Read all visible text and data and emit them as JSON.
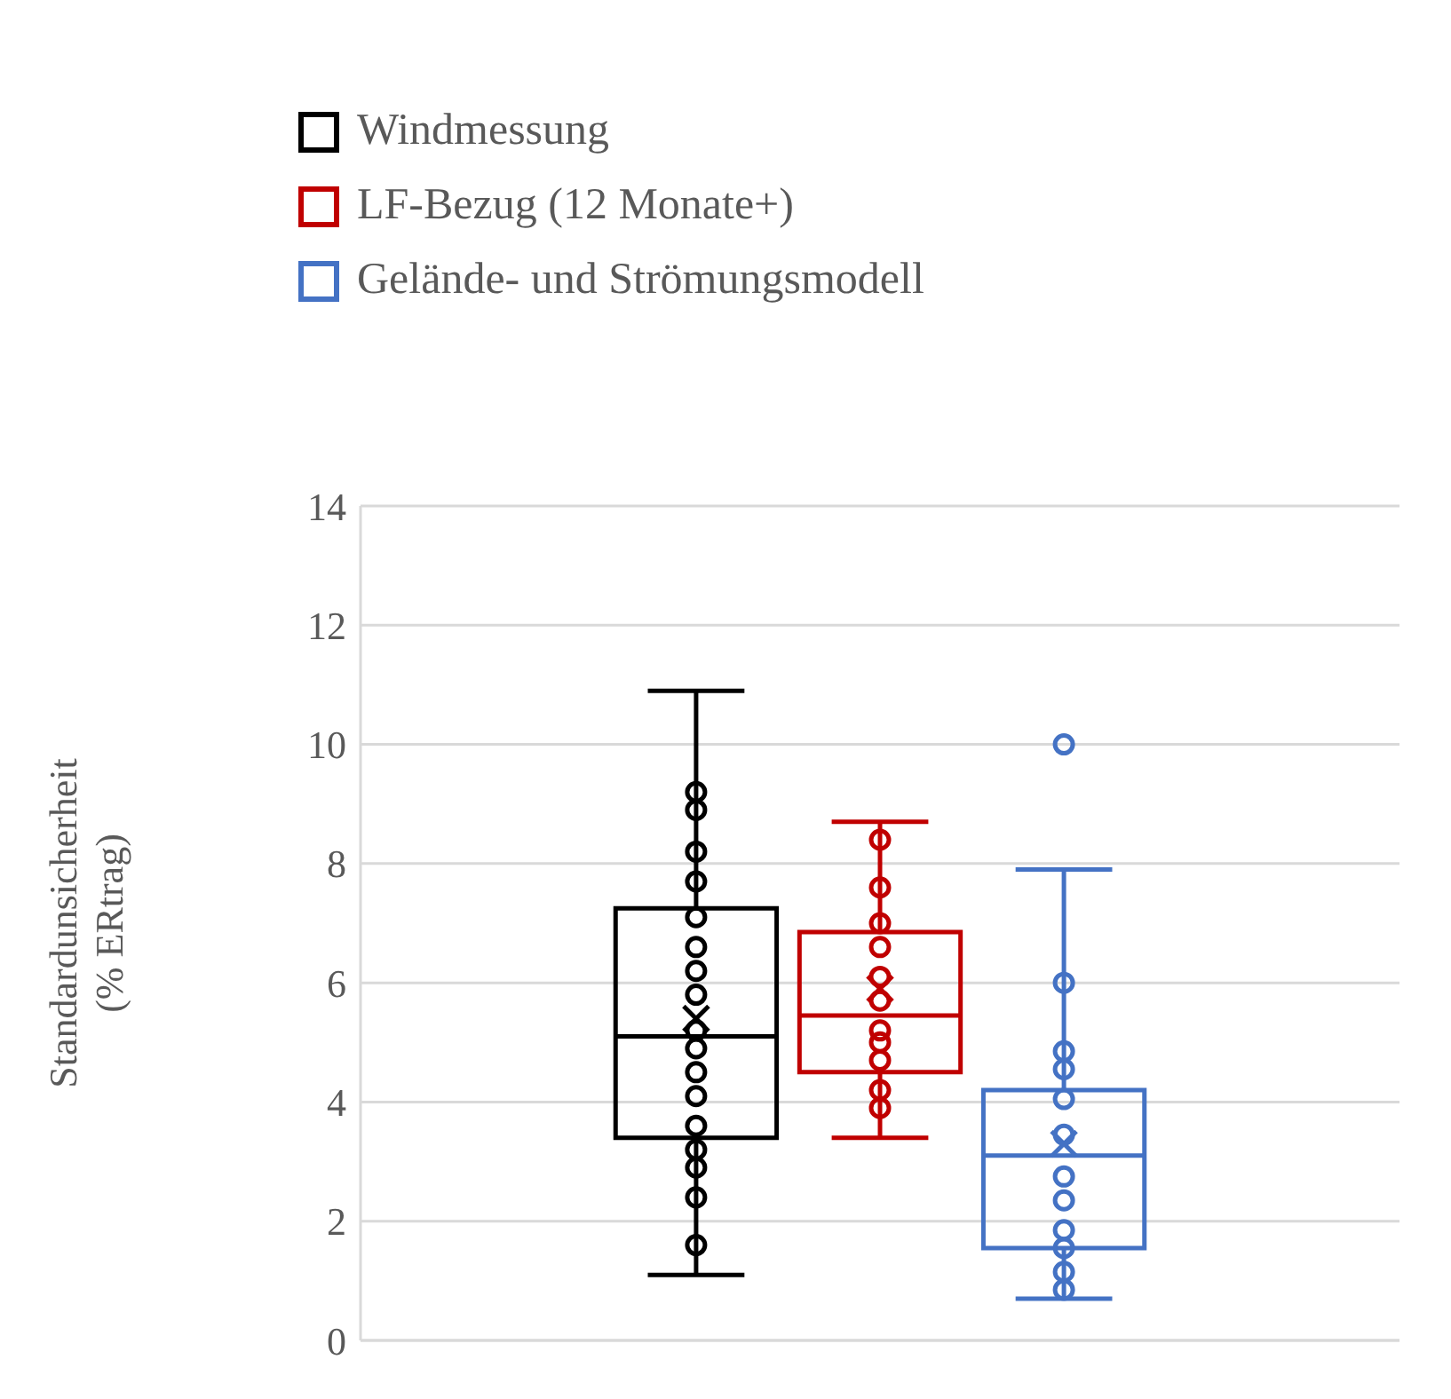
{
  "chart_data": {
    "type": "box",
    "ylabel": "Standardunsicherheit (% ERtrag)",
    "categories": [
      null
    ],
    "ylim": [
      0,
      14
    ],
    "yticks": [
      0,
      2,
      4,
      6,
      8,
      10,
      12,
      14
    ],
    "grid": "y",
    "legend": "top left",
    "tick_labels": "y",
    "marker": "circle",
    "series": [
      {
        "name": "Windmessung",
        "color": "#000000",
        "boxes": [
          {
            "low": 1.1,
            "q1": 3.4,
            "median": 5.1,
            "q3": 7.25,
            "high": 10.9,
            "mean": 5.4
          }
        ]
      },
      {
        "type": "scatter",
        "color": "#000000",
        "x": [
          null,
          null,
          null,
          null,
          null,
          null,
          null,
          null,
          null,
          null,
          null,
          null,
          null,
          null,
          null,
          null,
          null
        ],
        "values": [
          9.2,
          8.9,
          8.2,
          7.7,
          7.1,
          6.6,
          6.2,
          5.8,
          5.2,
          4.9,
          4.5,
          4.1,
          3.6,
          3.2,
          2.9,
          2.4,
          1.6
        ]
      },
      {
        "name": "LF-Bezug (12 Monate+)",
        "color": "#c00000",
        "boxes": [
          {
            "low": 3.4,
            "q1": 4.5,
            "median": 5.45,
            "q3": 6.85,
            "high": 8.7,
            "mean": 5.9
          }
        ]
      },
      {
        "type": "scatter",
        "color": "#c00000",
        "x": [
          null,
          null,
          null,
          null,
          null,
          null,
          null,
          null,
          null,
          null,
          null
        ],
        "values": [
          8.4,
          7.6,
          7.0,
          6.6,
          6.1,
          5.7,
          5.2,
          5.0,
          4.7,
          4.2,
          3.9
        ]
      },
      {
        "name": "Gelände- und Strömungsmodell",
        "color": "#4472c4",
        "boxes": [
          {
            "low": 0.7,
            "q1": 1.55,
            "median": 3.1,
            "q3": 4.2,
            "high": 7.9,
            "mean": 3.3,
            "outliers": [
              10.0
            ]
          }
        ]
      },
      {
        "type": "scatter",
        "color": "#4472c4",
        "x": [
          null,
          null,
          null,
          null,
          null,
          null,
          null,
          null,
          null,
          null,
          null
        ],
        "values": [
          6.0,
          4.85,
          4.55,
          4.05,
          3.45,
          2.75,
          2.35,
          1.85,
          1.55,
          1.15,
          0.85
        ]
      }
    ]
  }
}
